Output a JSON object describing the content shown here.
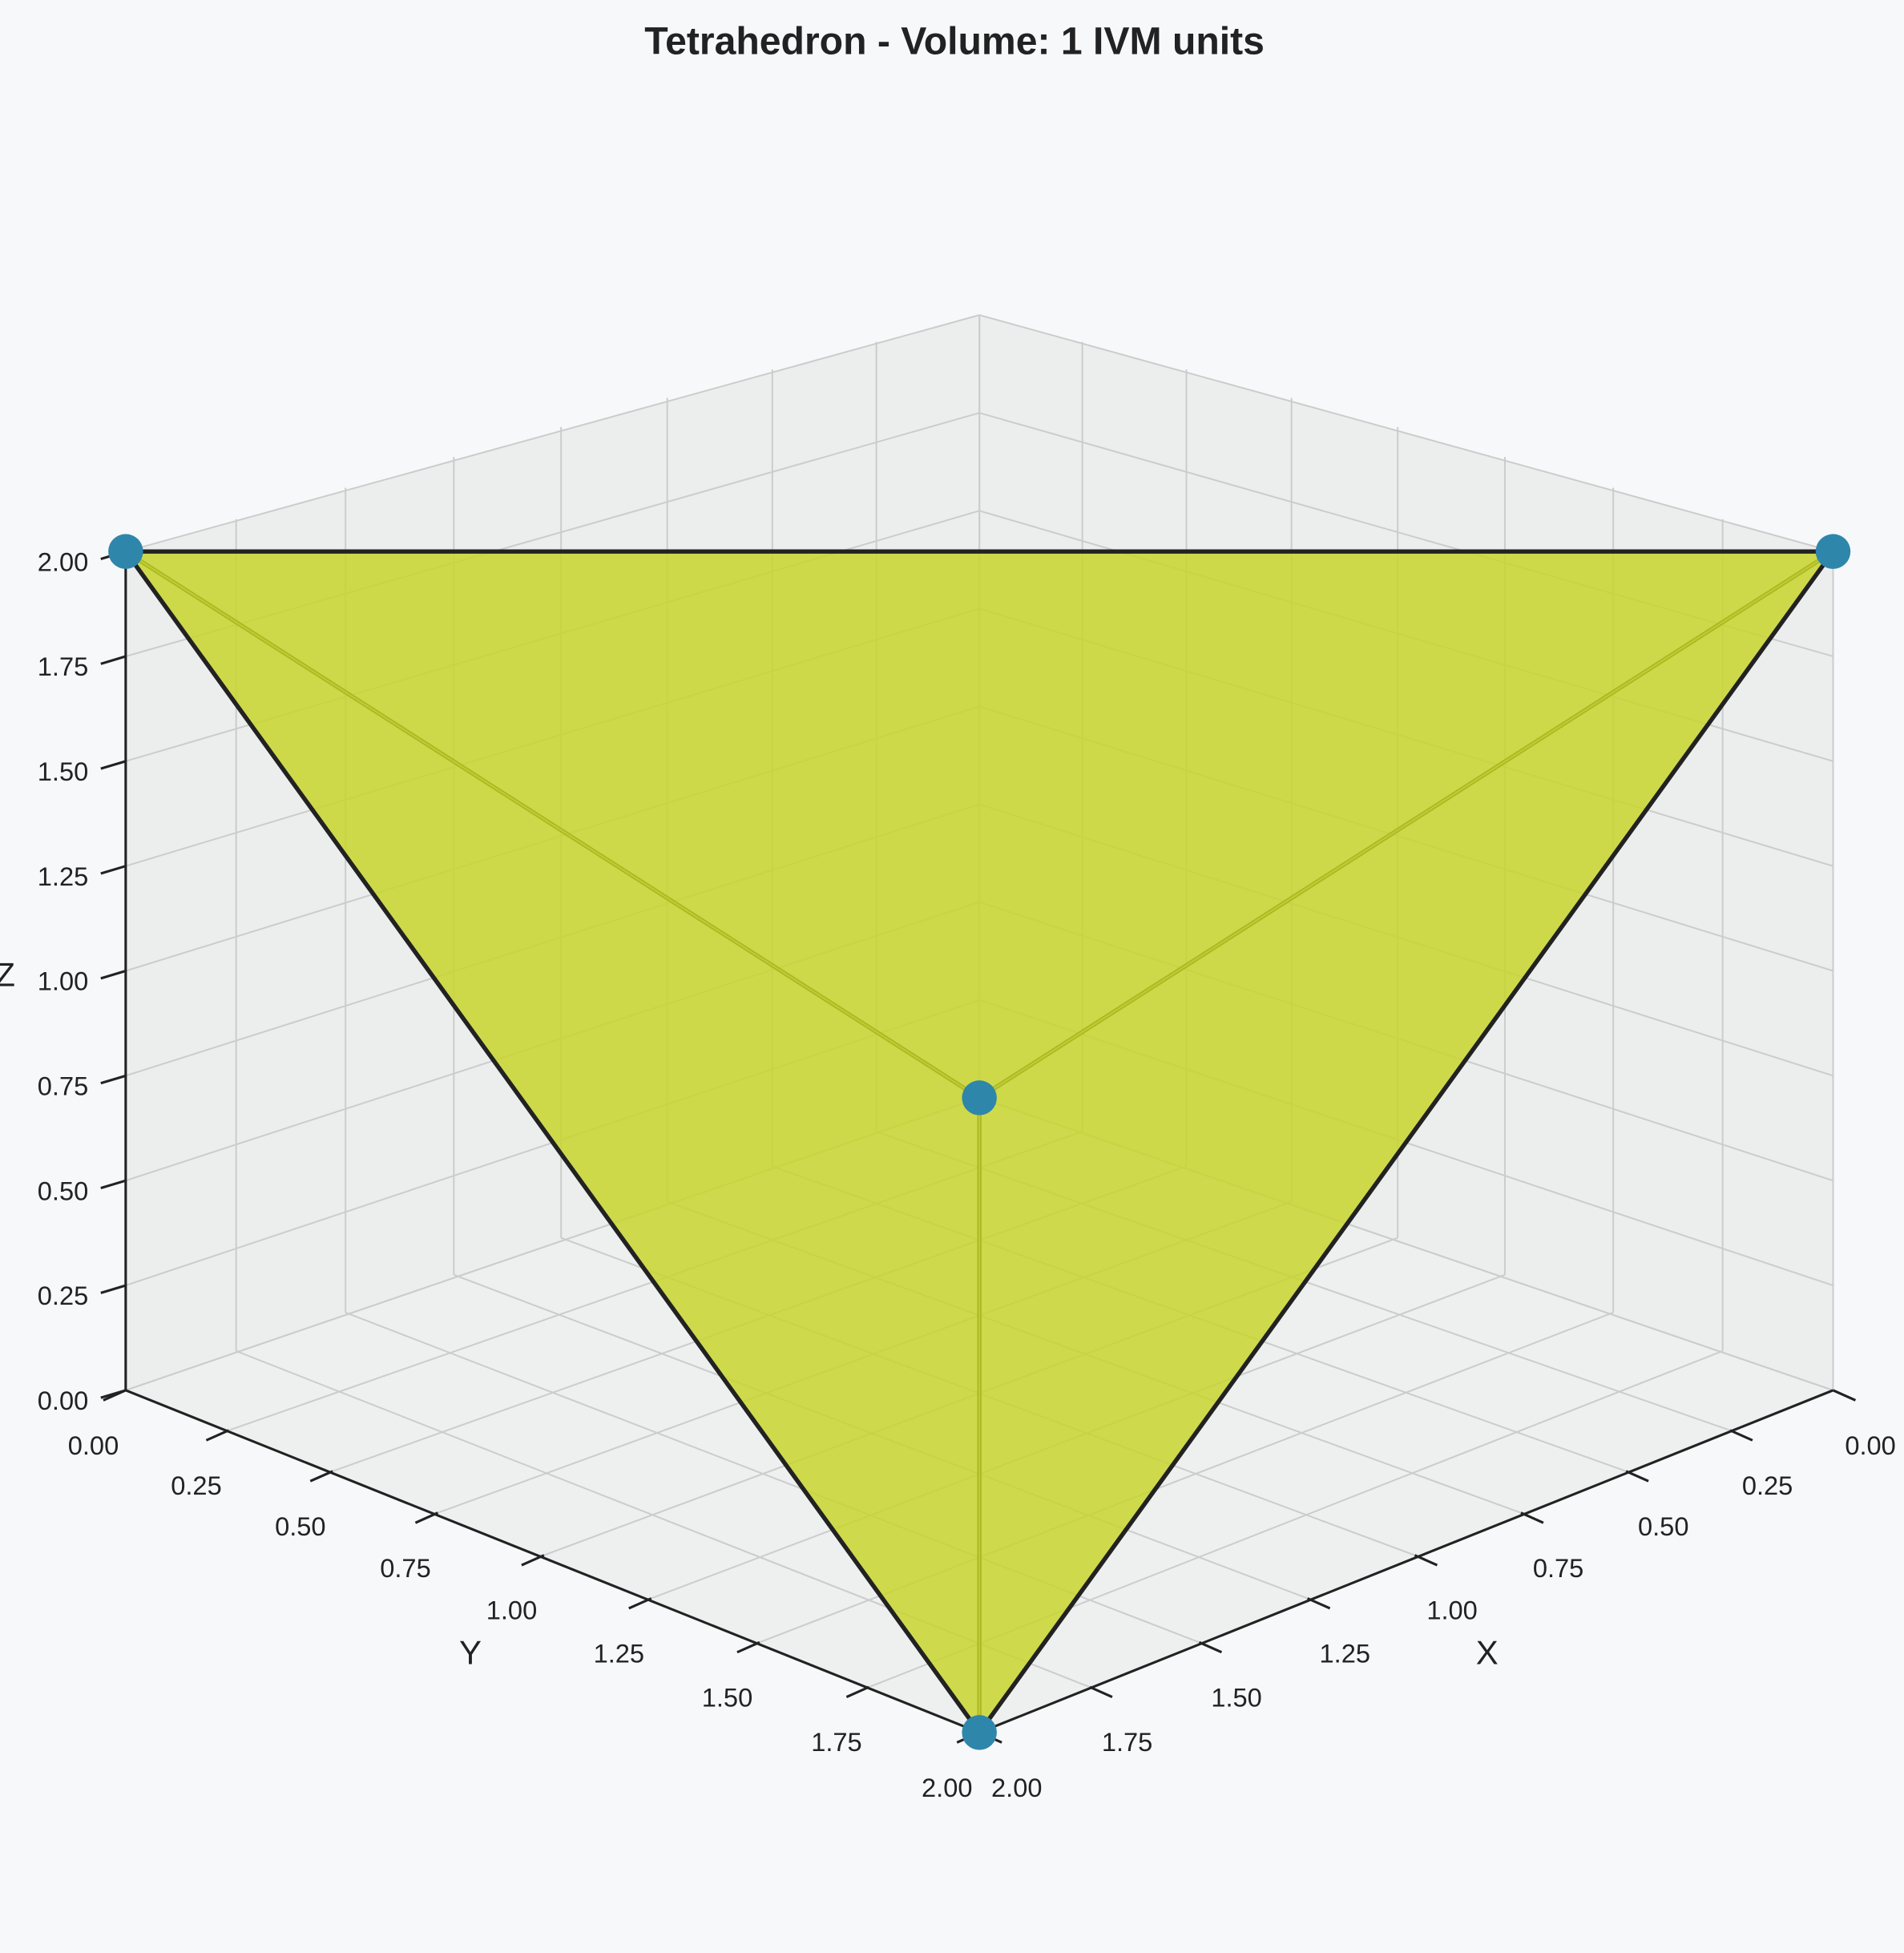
{
  "chart_data": {
    "type": "scatter3d",
    "title": "Tetrahedron - Volume: 1 IVM units",
    "xlabel": "X",
    "ylabel": "Y",
    "zlabel": "Z",
    "x": [
      2,
      0,
      2,
      0
    ],
    "y": [
      0,
      2,
      2,
      0
    ],
    "z": [
      2,
      2,
      0,
      0
    ],
    "color": "#2e86ab",
    "face_color": "#c8d62c",
    "edge_color": "#222222",
    "xlim": [
      0,
      2
    ],
    "ylim": [
      0,
      2
    ],
    "zlim": [
      0,
      2
    ],
    "xticks": [
      {
        "value": 0,
        "label": "0.00"
      },
      {
        "value": 0.25,
        "label": "0.25"
      },
      {
        "value": 0.5,
        "label": "0.50"
      },
      {
        "value": 0.75,
        "label": "0.75"
      },
      {
        "value": 1,
        "label": "1.00"
      },
      {
        "value": 1.25,
        "label": "1.25"
      },
      {
        "value": 1.5,
        "label": "1.50"
      },
      {
        "value": 1.75,
        "label": "1.75"
      },
      {
        "value": 2,
        "label": "2.00"
      }
    ],
    "yticks": [
      {
        "value": 0,
        "label": "0.00"
      },
      {
        "value": 0.25,
        "label": "0.25"
      },
      {
        "value": 0.5,
        "label": "0.50"
      },
      {
        "value": 0.75,
        "label": "0.75"
      },
      {
        "value": 1,
        "label": "1.00"
      },
      {
        "value": 1.25,
        "label": "1.25"
      },
      {
        "value": 1.5,
        "label": "1.50"
      },
      {
        "value": 1.75,
        "label": "1.75"
      },
      {
        "value": 2,
        "label": "2.00"
      }
    ],
    "zticks": [
      {
        "value": 0,
        "label": "0.00"
      },
      {
        "value": 0.25,
        "label": "0.25"
      },
      {
        "value": 0.5,
        "label": "0.50"
      },
      {
        "value": 0.75,
        "label": "0.75"
      },
      {
        "value": 1,
        "label": "1.00"
      },
      {
        "value": 1.25,
        "label": "1.25"
      },
      {
        "value": 1.5,
        "label": "1.50"
      },
      {
        "value": 1.75,
        "label": "1.75"
      },
      {
        "value": 2,
        "label": "2.00"
      }
    ],
    "grid": true
  }
}
